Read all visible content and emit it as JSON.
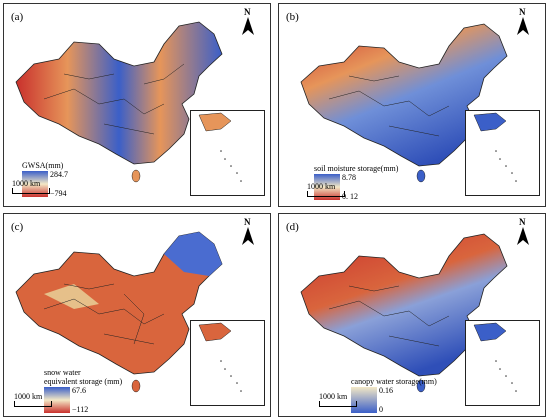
{
  "panels": [
    {
      "id": "a",
      "label": "(a)",
      "legend_title": "GWSA(mm)",
      "legend_title_2": "",
      "max": "284.7",
      "min": "−794",
      "scale": "1000 km",
      "north": "N",
      "colors": {
        "high": "#3b5fc8",
        "mid": "#f3e8c6",
        "low": "#c9302c"
      }
    },
    {
      "id": "b",
      "label": "(b)",
      "legend_title": "soil moisture storage(mm)",
      "legend_title_2": "",
      "max": "8.78",
      "min": "0. 12",
      "scale": "1000 km",
      "north": "N",
      "colors": {
        "high": "#3b5fc8",
        "mid": "#f3e8c6",
        "low": "#c9302c"
      }
    },
    {
      "id": "c",
      "label": "(c)",
      "legend_title": "snow water",
      "legend_title_2": "equivalent storage (mm)",
      "max": "67.6",
      "min": "−112",
      "scale": "1000 km",
      "north": "N",
      "colors": {
        "high": "#3b5fc8",
        "mid": "#f3e8c6",
        "low": "#c9302c"
      }
    },
    {
      "id": "d",
      "label": "(d)",
      "legend_title": "canopy water storage(mm)",
      "legend_title_2": "",
      "max": "0.16",
      "min": "0",
      "scale": "1000 km",
      "north": "N",
      "colors": {
        "high": "#3b5fc8",
        "mid": "#f3e8c6",
        "low": "#c9302c"
      }
    }
  ]
}
